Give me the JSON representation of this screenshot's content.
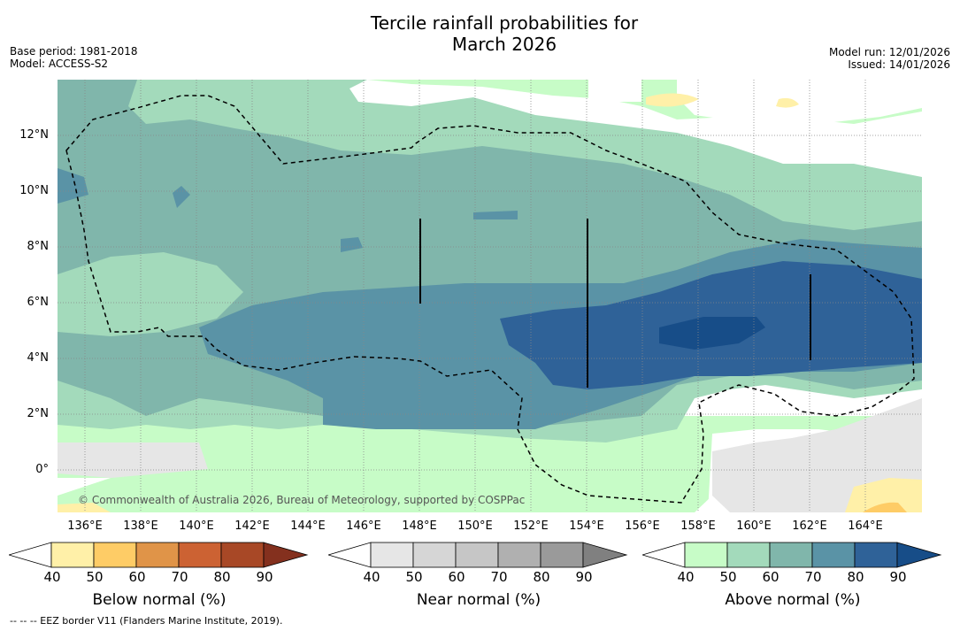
{
  "title_line1": "Tercile rainfall probabilities for",
  "title_line2": "March 2026",
  "meta": {
    "base_period": "Base period: 1981-2018",
    "model": "Model: ACCESS-S2",
    "model_run": "Model run: 12/01/2026",
    "issued": "Issued: 14/01/2026"
  },
  "map": {
    "lat_labels": [
      "12°N",
      "10°N",
      "8°N",
      "6°N",
      "4°N",
      "2°N",
      "0°"
    ],
    "lon_labels": [
      "136°E",
      "138°E",
      "140°E",
      "142°E",
      "144°E",
      "146°E",
      "148°E",
      "150°E",
      "152°E",
      "154°E",
      "156°E",
      "158°E",
      "160°E",
      "162°E",
      "164°E"
    ],
    "copyright": "© Commonwealth of Australia 2026, Bureau of Meteorology, supported by COSPPac"
  },
  "colorbars": [
    {
      "title": "Below normal (%)",
      "ticks": [
        "40",
        "50",
        "60",
        "70",
        "80",
        "90"
      ],
      "colors": [
        "#ffffff",
        "#fff0a8",
        "#fecc66",
        "#e09448",
        "#cc6233",
        "#a84826",
        "#84301e"
      ]
    },
    {
      "title": "Near normal (%)",
      "ticks": [
        "40",
        "50",
        "60",
        "70",
        "80",
        "90"
      ],
      "colors": [
        "#ffffff",
        "#e6e6e6",
        "#d6d6d6",
        "#c6c6c6",
        "#b0b0b0",
        "#9a9a9a",
        "#808080"
      ]
    },
    {
      "title": "Above normal (%)",
      "ticks": [
        "40",
        "50",
        "60",
        "70",
        "80",
        "90"
      ],
      "colors": [
        "#ffffff",
        "#c7fcc7",
        "#a3dabb",
        "#80b6ab",
        "#5a93a6",
        "#2f6298",
        "#174d88"
      ]
    }
  ],
  "footnote": "--  --  -- EEZ border V11 (Flanders Marine Institute, 2019)."
}
